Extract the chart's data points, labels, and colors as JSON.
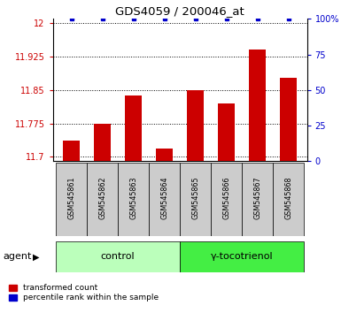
{
  "title": "GDS4059 / 200046_at",
  "samples": [
    "GSM545861",
    "GSM545862",
    "GSM545863",
    "GSM545864",
    "GSM545865",
    "GSM545866",
    "GSM545867",
    "GSM545868"
  ],
  "bar_values": [
    11.737,
    11.775,
    11.838,
    11.718,
    11.85,
    11.82,
    11.94,
    11.878
  ],
  "percentile_values": [
    100,
    100,
    100,
    100,
    100,
    100,
    100,
    100
  ],
  "ylim_left": [
    11.69,
    12.01
  ],
  "ylim_right": [
    0,
    100
  ],
  "yticks_left": [
    11.7,
    11.775,
    11.85,
    11.925,
    12
  ],
  "yticks_right": [
    0,
    25,
    50,
    75,
    100
  ],
  "ytick_labels_left": [
    "11.7",
    "11.775",
    "11.85",
    "11.925",
    "12"
  ],
  "ytick_labels_right": [
    "0",
    "25",
    "50",
    "75",
    "100%"
  ],
  "bar_color": "#cc0000",
  "dot_color": "#0000cc",
  "groups": [
    {
      "label": "control",
      "color": "#bbffbb"
    },
    {
      "label": "γ-tocotrienol",
      "color": "#44ee44"
    }
  ],
  "agent_label": "agent",
  "sample_box_color": "#cccccc",
  "background_color": "#ffffff",
  "left_tick_color": "#cc0000",
  "right_tick_color": "#0000cc"
}
